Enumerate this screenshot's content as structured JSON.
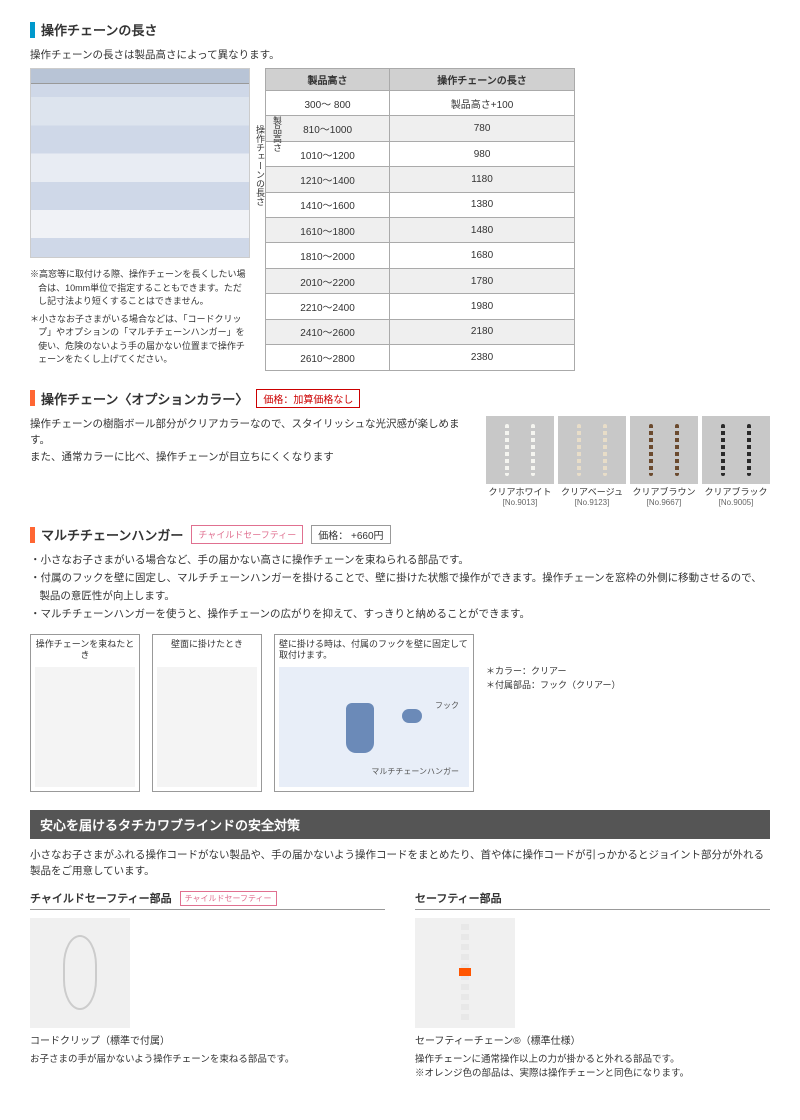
{
  "section1": {
    "title": "操作チェーンの長さ",
    "intro": "操作チェーンの長さは製品高さによって異なります。",
    "diagram_labels": {
      "chain": "操作チェーンの長さ",
      "height": "製品高さ"
    },
    "notes": [
      "※高窓等に取付ける際、操作チェーンを長くしたい場合は、10mm単位で指定することもできます。ただし記寸法より短くすることはできません。",
      "＊小さなお子さまがいる場合などは、「コードクリップ」やオプションの「マルチチェーンハンガー」を使い、危険のないよう手の届かない位置まで操作チェーンをたくし上げてください。"
    ],
    "table": {
      "headers": [
        "製品高さ",
        "操作チェーンの長さ"
      ],
      "rows": [
        [
          "300～ 800",
          "製品高さ+100"
        ],
        [
          "810～1000",
          "780"
        ],
        [
          "1010～1200",
          "980"
        ],
        [
          "1210～1400",
          "1180"
        ],
        [
          "1410～1600",
          "1380"
        ],
        [
          "1610～1800",
          "1480"
        ],
        [
          "1810～2000",
          "1680"
        ],
        [
          "2010～2200",
          "1780"
        ],
        [
          "2210～2400",
          "1980"
        ],
        [
          "2410～2600",
          "2180"
        ],
        [
          "2610～2800",
          "2380"
        ]
      ]
    }
  },
  "section2": {
    "title": "操作チェーン〈オプションカラー〉",
    "price_label": "価格：加算価格なし",
    "text1": "操作チェーンの樹脂ボール部分がクリアカラーなので、スタイリッシュな光沢感が楽しめます。",
    "text2": "また、通常カラーに比べ、操作チェーンが目立ちにくくなります",
    "swatches": [
      {
        "label": "クリアホワイト",
        "code": "[No.9013]",
        "color": "#f5f5f0"
      },
      {
        "label": "クリアベージュ",
        "code": "[No.9123]",
        "color": "#e8ddc8"
      },
      {
        "label": "クリアブラウン",
        "code": "[No.9667]",
        "color": "#6b4a2e"
      },
      {
        "label": "クリアブラック",
        "code": "[No.9005]",
        "color": "#2a2a2a"
      }
    ]
  },
  "section3": {
    "title": "マルチチェーンハンガー",
    "badge": "チャイルドセーフティー",
    "price_label": "価格： +660円",
    "bullets": [
      "・小さなお子さまがいる場合など、手の届かない高さに操作チェーンを束ねられる部品です。",
      "・付属のフックを壁に固定し、マルチチェーンハンガーを掛けることで、壁に掛けた状態で操作ができます。操作チェーンを窓枠の外側に移動させるので、製品の意匠性が向上します。",
      "・マルチチェーンハンガーを使うと、操作チェーンの広がりを抑えて、すっきりと納めることができます。"
    ],
    "captions": [
      "操作チェーンを束ねたとき",
      "壁面に掛けたとき",
      "壁に掛ける時は、付属のフックを壁に固定して取付けます。"
    ],
    "diagram_labels": {
      "hook": "フック",
      "hanger": "マルチチェーンハンガー"
    },
    "notes": [
      "＊カラー：クリアー",
      "＊付属部品：フック（クリアー）"
    ]
  },
  "safety": {
    "header": "安心を届けるタチカワブラインドの安全対策",
    "intro": "小さなお子さまがふれる操作コードがない製品や、手の届かないよう操作コードをまとめたり、首や体に操作コードが引っかかるとジョイント部分が外れる製品をご用意しています。",
    "col1": {
      "title": "チャイルドセーフティー部品",
      "badge": "チャイルドセーフティー",
      "caption": "コードクリップ（標準で付属）",
      "note": "お子さまの手が届かないよう操作チェーンを束ねる部品です。"
    },
    "col2": {
      "title": "セーフティー部品",
      "caption": "セーフティーチェーン®（標準仕様）",
      "note1": "操作チェーンに通常操作以上の力が掛かると外れる部品です。",
      "note2": "※オレンジ色の部品は、実際は操作チェーンと同色になります。"
    }
  }
}
